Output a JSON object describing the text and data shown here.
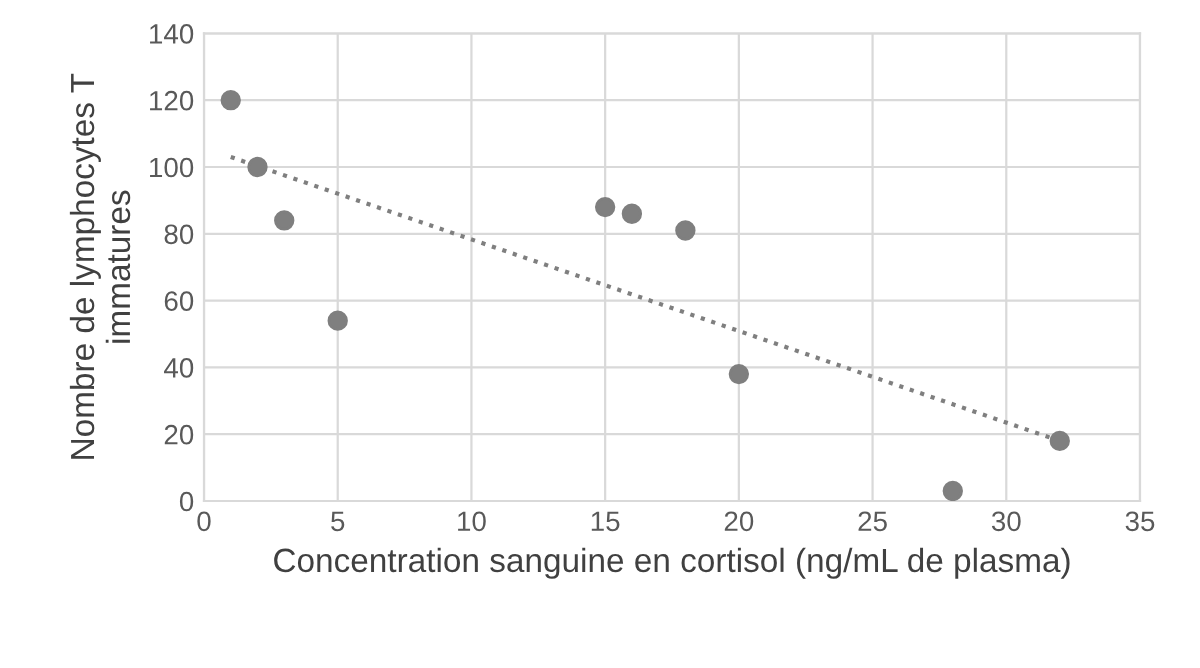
{
  "chart_data": {
    "type": "scatter",
    "xlabel": "Concentration sanguine en cortisol (ng/mL de plasma)",
    "ylabel": "Nombre de lymphocytes T immatures",
    "series": [
      {
        "color": "#7f7f7f",
        "marker": "circle",
        "x": [
          1,
          2,
          3,
          5,
          15,
          16,
          18,
          20,
          28,
          32
        ],
        "values": [
          120,
          100,
          84,
          54,
          88,
          86,
          81,
          38,
          3,
          18
        ]
      },
      {
        "type": "line",
        "color": "#7f7f7f",
        "line_style": "dotted",
        "marker": "none",
        "x": [
          1,
          32
        ],
        "values": [
          103,
          18
        ]
      }
    ],
    "xlim": [
      0,
      35
    ],
    "xticks": [
      0,
      5,
      10,
      15,
      20,
      25,
      30,
      35
    ],
    "ylim": [
      0,
      140
    ],
    "yticks": [
      0,
      20,
      40,
      60,
      80,
      100,
      120,
      140
    ],
    "grid": true,
    "legend": false
  }
}
